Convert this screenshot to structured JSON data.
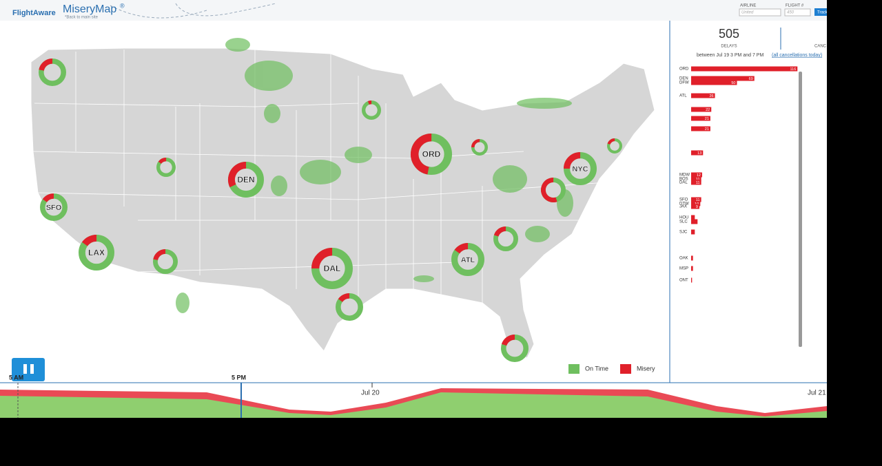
{
  "header": {
    "brand": "FlightAware",
    "title": "MiseryMap",
    "reg": "®",
    "back_link": "*Back to main site",
    "airline_label": "AIRLINE",
    "airline_placeholder": "United",
    "flight_label": "FLIGHT #",
    "flight_placeholder": "450",
    "track_button": "Track"
  },
  "stats": {
    "delays": 505,
    "delays_label": "DELAYS",
    "cancellations_label": "CANC",
    "period": "between Jul 19 3 PM and 7 PM",
    "cancellations_link": "(all cancellations today)"
  },
  "airport_bars": [
    {
      "code": "ORD",
      "value": 116
    },
    {
      "code": "DEN",
      "value": 69
    },
    {
      "code": "DFW",
      "value": 50
    },
    {
      "code": "ATL",
      "value": 26
    },
    {
      "code": null,
      "value": 22
    },
    {
      "code": null,
      "value": 21
    },
    {
      "code": null,
      "value": 21
    },
    {
      "code": null,
      "value": 13
    },
    {
      "code": "MDW",
      "value": 12
    },
    {
      "code": "BOS",
      "value": 11
    },
    {
      "code": "DAL",
      "value": 11
    },
    {
      "code": "SFO",
      "value": 11
    },
    {
      "code": "DTW",
      "value": 10
    },
    {
      "code": "JAX",
      "value": 9
    },
    {
      "code": "HOU",
      "value": 4
    },
    {
      "code": "SLC",
      "value": 7
    },
    {
      "code": "SJC",
      "value": 4
    },
    {
      "code": "OAK",
      "value": 2
    },
    {
      "code": "MSP",
      "value": 2
    },
    {
      "code": "ONT",
      "value": 1
    }
  ],
  "airports": [
    {
      "label": null,
      "misery": 0.22
    },
    {
      "label": null,
      "misery": 0.06
    },
    {
      "label": "ORD",
      "misery": 0.47
    },
    {
      "label": null,
      "misery": 0.25
    },
    {
      "label": null,
      "misery": 0.2
    },
    {
      "label": null,
      "misery": 0.15
    },
    {
      "label": "DEN",
      "misery": 0.32
    },
    {
      "label": "NYC",
      "misery": 0.25
    },
    {
      "label": null,
      "misery": 0.55
    },
    {
      "label": "SFO",
      "misery": 0.15
    },
    {
      "label": "LAX",
      "misery": 0.15
    },
    {
      "label": null,
      "misery": 0.22
    },
    {
      "label": "DAL",
      "misery": 0.25
    },
    {
      "label": "ATL",
      "misery": 0.15
    },
    {
      "label": null,
      "misery": 0.2
    },
    {
      "label": null,
      "misery": 0.15
    },
    {
      "label": null,
      "misery": 0.2
    }
  ],
  "legend": {
    "on_time": "On Time",
    "misery": "Misery"
  },
  "timeline": {
    "start": "5 AM",
    "current": "5 PM",
    "day1": "Jul 20",
    "day2": "Jul 21"
  }
}
